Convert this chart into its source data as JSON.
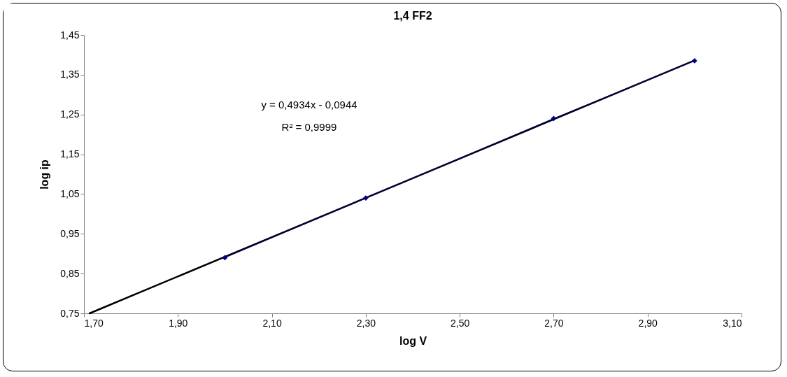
{
  "chart_data": {
    "type": "line",
    "title": "1,4 FF2",
    "xlabel": "log V",
    "ylabel": "log ip",
    "xlim": [
      1.7,
      3.1
    ],
    "ylim": [
      0.75,
      1.45
    ],
    "xticks": [
      {
        "value": 1.7,
        "label": "1,70"
      },
      {
        "value": 1.9,
        "label": "1,90"
      },
      {
        "value": 2.1,
        "label": "2,10"
      },
      {
        "value": 2.3,
        "label": "2,30"
      },
      {
        "value": 2.5,
        "label": "2,50"
      },
      {
        "value": 2.7,
        "label": "2,70"
      },
      {
        "value": 2.9,
        "label": "2,90"
      },
      {
        "value": 3.1,
        "label": "3,10"
      }
    ],
    "yticks": [
      {
        "value": 0.75,
        "label": "0,75"
      },
      {
        "value": 0.85,
        "label": "0,85"
      },
      {
        "value": 0.95,
        "label": "0,95"
      },
      {
        "value": 1.05,
        "label": "1,05"
      },
      {
        "value": 1.15,
        "label": "1,15"
      },
      {
        "value": 1.25,
        "label": "1,25"
      },
      {
        "value": 1.35,
        "label": "1,35"
      },
      {
        "value": 1.45,
        "label": "1,45"
      }
    ],
    "grid": false,
    "marker": "diamond",
    "series": [
      {
        "color": "#000080",
        "x": [
          2.0,
          2.3,
          2.7,
          3.0
        ],
        "values": [
          0.89,
          1.04,
          1.24,
          1.385
        ]
      },
      {
        "color": "#000000",
        "x": [
          1.712,
          3.0
        ],
        "values": [
          0.75,
          1.386
        ],
        "marker": "none"
      }
    ],
    "annotations": [
      "y = 0,4934x - 0,0944",
      "R² = 0,9999"
    ]
  }
}
